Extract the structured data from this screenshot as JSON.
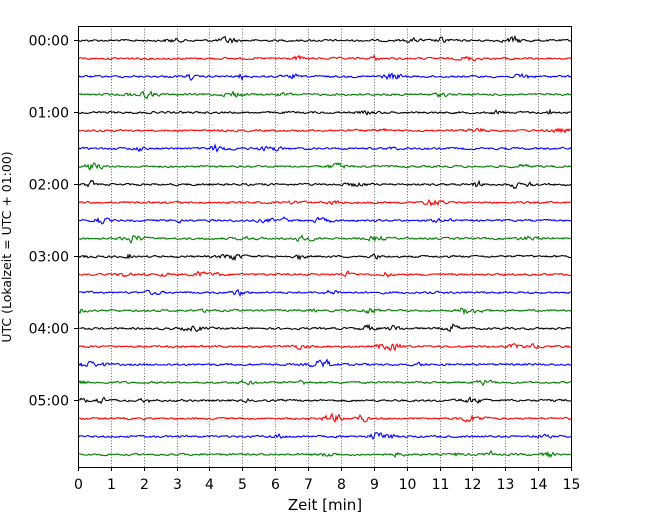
{
  "chart_data": {
    "type": "line",
    "title": "",
    "xlabel": "Zeit  [min]",
    "ylabel": "UTC (Lokalzeit = UTC + 01:00)",
    "xlim": [
      0,
      15
    ],
    "xticks": [
      "0",
      "1",
      "2",
      "3",
      "4",
      "5",
      "6",
      "7",
      "8",
      "9",
      "10",
      "11",
      "12",
      "13",
      "14",
      "15"
    ],
    "yticks": [
      "00:00",
      "01:00",
      "02:00",
      "03:00",
      "04:00",
      "05:00"
    ],
    "row_interval_min": 15,
    "row_start_times": [
      "00:00",
      "00:15",
      "00:30",
      "00:45",
      "01:00",
      "01:15",
      "01:30",
      "01:45",
      "02:00",
      "02:15",
      "02:30",
      "02:45",
      "03:00",
      "03:15",
      "03:30",
      "03:45",
      "04:00",
      "04:15",
      "04:30",
      "04:45",
      "05:00",
      "05:15",
      "05:30",
      "05:45"
    ],
    "row_colors": [
      "#000000",
      "#ff0000",
      "#0000ff",
      "#007f00"
    ],
    "x_grid": true,
    "y_grid": false,
    "grid_style": "dotted"
  }
}
